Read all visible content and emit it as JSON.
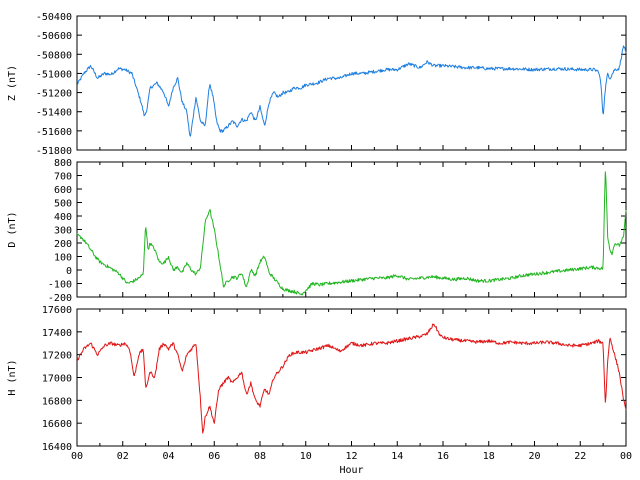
{
  "chart_data": {
    "type": "line",
    "xlabel": "Hour",
    "x_ticks": [
      "00",
      "02",
      "04",
      "06",
      "08",
      "10",
      "12",
      "14",
      "16",
      "18",
      "20",
      "22",
      "00"
    ],
    "x_range_hours": [
      0,
      24
    ],
    "grid": false,
    "panels": [
      {
        "name": "Z",
        "ylabel": "Z (nT)",
        "color": "#1f7fe0",
        "ylim": [
          -51800,
          -50400
        ],
        "yticks": [
          -51800,
          -51600,
          -51400,
          -51200,
          -51000,
          -50800,
          -50600,
          -50400
        ],
        "x": [
          0,
          0.3,
          0.6,
          0.9,
          1.2,
          1.5,
          1.8,
          2.1,
          2.4,
          2.6,
          2.8,
          2.95,
          3.05,
          3.2,
          3.5,
          3.8,
          4.0,
          4.2,
          4.4,
          4.6,
          4.8,
          4.95,
          5.05,
          5.2,
          5.4,
          5.6,
          5.8,
          5.95,
          6.1,
          6.25,
          6.4,
          6.6,
          6.8,
          7.0,
          7.2,
          7.4,
          7.6,
          7.8,
          8.0,
          8.2,
          8.4,
          8.6,
          8.8,
          9.0,
          9.2,
          9.5,
          9.8,
          10.0,
          10.5,
          11.0,
          11.5,
          12.0,
          12.5,
          13.0,
          13.5,
          14.0,
          14.5,
          15.0,
          15.3,
          15.6,
          16.0,
          16.5,
          17.0,
          17.5,
          18.0,
          19.0,
          20.0,
          21.0,
          22.0,
          22.6,
          22.8,
          22.9,
          23.0,
          23.1,
          23.2,
          23.3,
          23.5,
          23.7,
          23.9,
          24.0
        ],
        "values": [
          -51120,
          -51000,
          -50920,
          -51050,
          -51000,
          -51010,
          -50950,
          -50960,
          -51000,
          -51150,
          -51300,
          -51450,
          -51380,
          -51150,
          -51100,
          -51200,
          -51350,
          -51150,
          -51050,
          -51300,
          -51400,
          -51680,
          -51500,
          -51250,
          -51500,
          -51550,
          -51100,
          -51250,
          -51500,
          -51600,
          -51600,
          -51550,
          -51500,
          -51550,
          -51480,
          -51500,
          -51400,
          -51500,
          -51350,
          -51550,
          -51300,
          -51200,
          -51250,
          -51200,
          -51200,
          -51150,
          -51150,
          -51120,
          -51100,
          -51050,
          -51050,
          -51000,
          -51000,
          -50980,
          -50960,
          -50960,
          -50900,
          -50940,
          -50880,
          -50920,
          -50920,
          -50930,
          -50940,
          -50940,
          -50950,
          -50950,
          -50960,
          -50950,
          -50960,
          -50960,
          -50980,
          -51100,
          -51450,
          -51150,
          -51000,
          -51050,
          -50960,
          -50950,
          -50700,
          -50800
        ]
      },
      {
        "name": "D",
        "ylabel": "D (nT)",
        "color": "#22b522",
        "ylim": [
          -200,
          800
        ],
        "yticks": [
          -200,
          -100,
          0,
          100,
          200,
          300,
          400,
          500,
          600,
          700,
          800
        ],
        "x": [
          0,
          0.2,
          0.4,
          0.6,
          0.8,
          1.0,
          1.2,
          1.4,
          1.6,
          1.8,
          2.0,
          2.2,
          2.5,
          2.7,
          2.9,
          3.0,
          3.1,
          3.2,
          3.4,
          3.6,
          3.8,
          4.0,
          4.2,
          4.4,
          4.6,
          4.8,
          5.0,
          5.2,
          5.4,
          5.6,
          5.8,
          6.0,
          6.2,
          6.4,
          6.6,
          6.8,
          7.0,
          7.2,
          7.4,
          7.6,
          7.8,
          8.0,
          8.2,
          8.4,
          8.6,
          8.8,
          9.0,
          9.2,
          9.5,
          9.8,
          10.0,
          10.3,
          10.6,
          11.0,
          11.5,
          12.0,
          12.5,
          13.0,
          13.5,
          14.0,
          14.5,
          15.0,
          15.5,
          16.0,
          16.5,
          17.0,
          17.5,
          18.0,
          18.5,
          19.0,
          19.5,
          20.0,
          20.5,
          21.0,
          21.5,
          22.0,
          22.5,
          23.0,
          23.1,
          23.2,
          23.3,
          23.4,
          23.5,
          23.7,
          23.9,
          24.0
        ],
        "values": [
          260,
          240,
          200,
          150,
          100,
          60,
          40,
          20,
          0,
          -20,
          -60,
          -100,
          -80,
          -60,
          -30,
          350,
          150,
          200,
          150,
          60,
          50,
          100,
          0,
          20,
          -20,
          50,
          0,
          -30,
          20,
          350,
          450,
          300,
          100,
          -120,
          -80,
          -50,
          -60,
          -20,
          -130,
          0,
          -40,
          60,
          100,
          -20,
          -60,
          -100,
          -140,
          -150,
          -160,
          -180,
          -150,
          -100,
          -110,
          -100,
          -90,
          -80,
          -70,
          -60,
          -60,
          -40,
          -70,
          -60,
          -50,
          -60,
          -70,
          -60,
          -80,
          -80,
          -70,
          -60,
          -40,
          -30,
          -20,
          -10,
          0,
          10,
          20,
          10,
          780,
          250,
          150,
          120,
          200,
          180,
          250,
          450
        ]
      },
      {
        "name": "H",
        "ylabel": "H (nT)",
        "color": "#e01515",
        "ylim": [
          16400,
          17600
        ],
        "yticks": [
          16400,
          16600,
          16800,
          17000,
          17200,
          17400,
          17600
        ],
        "x": [
          0,
          0.3,
          0.6,
          0.9,
          1.2,
          1.5,
          1.8,
          2.1,
          2.3,
          2.5,
          2.7,
          2.9,
          3.0,
          3.2,
          3.4,
          3.6,
          3.8,
          4.0,
          4.2,
          4.4,
          4.6,
          4.8,
          5.0,
          5.2,
          5.4,
          5.5,
          5.6,
          5.8,
          6.0,
          6.2,
          6.4,
          6.6,
          6.8,
          7.0,
          7.2,
          7.4,
          7.6,
          7.8,
          8.0,
          8.2,
          8.4,
          8.6,
          8.8,
          9.0,
          9.3,
          9.6,
          10.0,
          10.5,
          11.0,
          11.5,
          12.0,
          12.5,
          13.0,
          13.5,
          14.0,
          14.5,
          15.0,
          15.3,
          15.6,
          15.9,
          16.2,
          16.5,
          17.0,
          17.5,
          18.0,
          18.5,
          19.0,
          19.5,
          20.0,
          20.5,
          21.0,
          21.5,
          22.0,
          22.5,
          22.8,
          23.0,
          23.1,
          23.2,
          23.3,
          23.5,
          23.7,
          23.9,
          24.0
        ],
        "values": [
          17150,
          17250,
          17300,
          17200,
          17280,
          17300,
          17280,
          17300,
          17250,
          17000,
          17200,
          17250,
          16900,
          17050,
          17000,
          17250,
          17300,
          17250,
          17300,
          17200,
          17050,
          17200,
          17250,
          17300,
          16800,
          16500,
          16650,
          16750,
          16600,
          16900,
          16950,
          17000,
          16950,
          17000,
          17050,
          16850,
          16950,
          16800,
          16750,
          16900,
          16850,
          17000,
          17050,
          17100,
          17200,
          17220,
          17220,
          17250,
          17280,
          17230,
          17300,
          17280,
          17300,
          17300,
          17320,
          17340,
          17360,
          17380,
          17470,
          17360,
          17340,
          17330,
          17320,
          17310,
          17320,
          17300,
          17310,
          17300,
          17300,
          17310,
          17300,
          17280,
          17280,
          17300,
          17320,
          17300,
          16750,
          17150,
          17350,
          17200,
          17050,
          16800,
          16700
        ]
      }
    ]
  }
}
